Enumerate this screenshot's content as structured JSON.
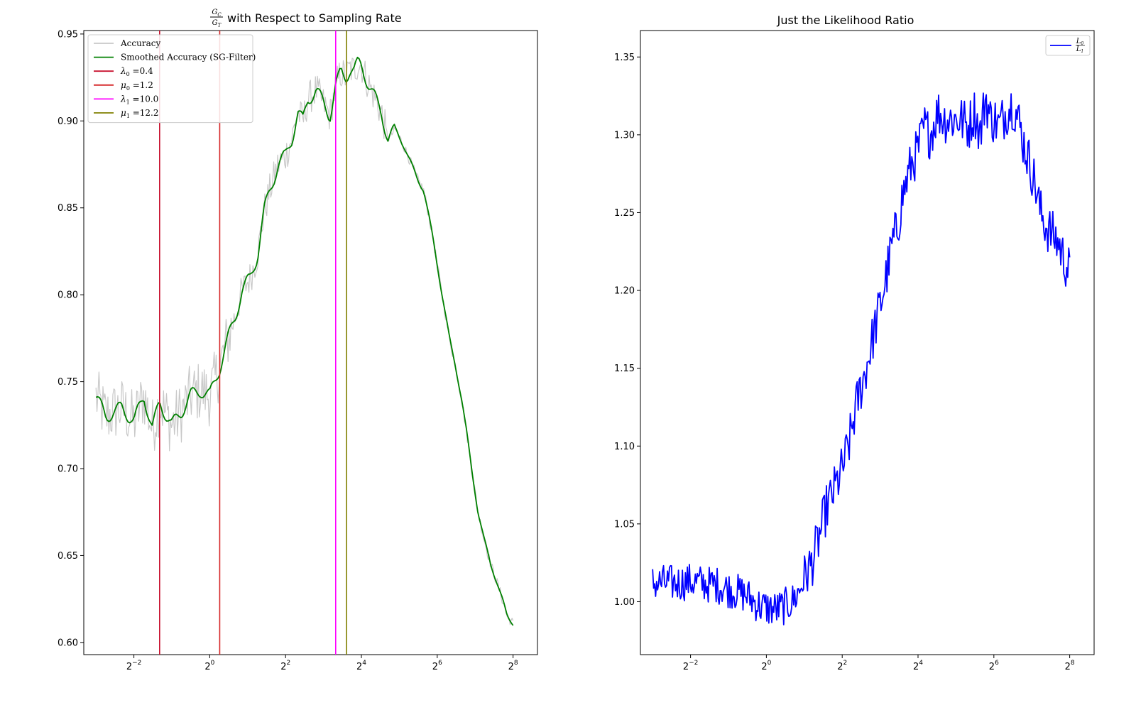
{
  "chart_data": [
    {
      "type": "line",
      "title": "with Respect to Sampling Rate",
      "title_fraction": {
        "numerator": "G",
        "numerator_sub": "C",
        "denominator": "G",
        "denominator_sub": "T"
      },
      "xlabel": "",
      "ylabel": "",
      "xscale": "log2",
      "xlim": [
        0.1,
        400
      ],
      "ylim": [
        0.593,
        0.952
      ],
      "xticks": [
        {
          "value": 0.25,
          "base": "2",
          "exp": "−2"
        },
        {
          "value": 1,
          "base": "2",
          "exp": "0"
        },
        {
          "value": 4,
          "base": "2",
          "exp": "2"
        },
        {
          "value": 16,
          "base": "2",
          "exp": "4"
        },
        {
          "value": 64,
          "base": "2",
          "exp": "6"
        },
        {
          "value": 256,
          "base": "2",
          "exp": "8"
        }
      ],
      "yticks": [
        {
          "value": 0.6,
          "label": "0.60"
        },
        {
          "value": 0.65,
          "label": "0.65"
        },
        {
          "value": 0.7,
          "label": "0.70"
        },
        {
          "value": 0.75,
          "label": "0.75"
        },
        {
          "value": 0.8,
          "label": "0.80"
        },
        {
          "value": 0.85,
          "label": "0.85"
        },
        {
          "value": 0.9,
          "label": "0.90"
        },
        {
          "value": 0.95,
          "label": "0.95"
        }
      ],
      "grid": false,
      "legend_position": "top-left",
      "series": [
        {
          "name": "Accuracy",
          "color": "#c8c8c8",
          "noisy": true,
          "x": [
            0.125,
            0.15,
            0.2,
            0.25,
            0.3,
            0.35,
            0.4,
            0.5,
            0.6,
            0.7,
            0.85,
            1.0,
            1.2,
            1.4,
            1.6,
            1.8,
            2.1,
            2.4,
            2.7,
            3.0,
            3.5,
            4.0,
            4.5,
            5.0,
            5.5,
            6.0,
            7.0,
            8.0,
            9.0,
            10.0,
            11.0,
            12.0,
            13.0,
            14.0,
            15.0,
            16.0,
            18.0,
            20.0,
            23.0,
            26.0,
            30.0,
            35.0,
            40.0,
            45.0,
            50.0,
            55.0,
            60.0,
            70.0,
            80.0,
            90.0,
            100.0,
            110.0,
            120.0,
            135.0,
            150.0,
            170.0,
            190.0,
            210.0,
            230.0,
            256.0
          ],
          "y": [
            0.741,
            0.73,
            0.735,
            0.727,
            0.742,
            0.723,
            0.738,
            0.725,
            0.733,
            0.742,
            0.745,
            0.742,
            0.758,
            0.775,
            0.788,
            0.802,
            0.81,
            0.823,
            0.848,
            0.86,
            0.875,
            0.88,
            0.89,
            0.905,
            0.9,
            0.912,
            0.918,
            0.91,
            0.903,
            0.92,
            0.928,
            0.925,
            0.93,
            0.929,
            0.933,
            0.932,
            0.922,
            0.915,
            0.905,
            0.89,
            0.895,
            0.885,
            0.875,
            0.866,
            0.86,
            0.845,
            0.83,
            0.8,
            0.775,
            0.758,
            0.74,
            0.72,
            0.7,
            0.675,
            0.66,
            0.645,
            0.635,
            0.625,
            0.615,
            0.611
          ]
        },
        {
          "name": "Smoothed Accuracy (SG-Filter)",
          "color": "#008000",
          "noisy": false,
          "x": [
            0.125,
            0.15,
            0.2,
            0.25,
            0.3,
            0.35,
            0.4,
            0.5,
            0.6,
            0.7,
            0.85,
            1.0,
            1.2,
            1.4,
            1.6,
            1.8,
            2.1,
            2.4,
            2.7,
            3.0,
            3.5,
            4.0,
            4.5,
            5.0,
            5.5,
            6.0,
            7.0,
            8.0,
            9.0,
            10.0,
            11.0,
            12.0,
            13.0,
            14.0,
            15.0,
            16.0,
            18.0,
            20.0,
            23.0,
            26.0,
            30.0,
            35.0,
            40.0,
            45.0,
            50.0,
            55.0,
            60.0,
            70.0,
            80.0,
            90.0,
            100.0,
            110.0,
            120.0,
            135.0,
            150.0,
            170.0,
            190.0,
            210.0,
            230.0,
            256.0
          ],
          "y": [
            0.741,
            0.73,
            0.735,
            0.727,
            0.742,
            0.723,
            0.738,
            0.725,
            0.733,
            0.742,
            0.745,
            0.742,
            0.758,
            0.775,
            0.788,
            0.802,
            0.81,
            0.823,
            0.848,
            0.86,
            0.875,
            0.88,
            0.89,
            0.905,
            0.9,
            0.912,
            0.918,
            0.91,
            0.903,
            0.92,
            0.928,
            0.925,
            0.93,
            0.929,
            0.933,
            0.932,
            0.922,
            0.915,
            0.905,
            0.89,
            0.895,
            0.885,
            0.875,
            0.866,
            0.86,
            0.845,
            0.83,
            0.8,
            0.775,
            0.758,
            0.74,
            0.72,
            0.7,
            0.675,
            0.66,
            0.645,
            0.635,
            0.625,
            0.615,
            0.611
          ]
        }
      ],
      "vlines": [
        {
          "x": 0.4,
          "color": "#c8102e",
          "sym": "λ",
          "sub": "0",
          "value": "0.4"
        },
        {
          "x": 1.2,
          "color": "#d62728",
          "sym": "μ",
          "sub": "0",
          "value": "1.2"
        },
        {
          "x": 10.0,
          "color": "#ff00ff",
          "sym": "λ",
          "sub": "1",
          "value": "10.0"
        },
        {
          "x": 12.2,
          "color": "#808000",
          "sym": "μ",
          "sub": "1",
          "value": "12.2"
        }
      ]
    },
    {
      "type": "line",
      "title": "Just the Likelihood Ratio",
      "xlabel": "",
      "ylabel": "",
      "xscale": "log2",
      "xlim": [
        0.1,
        400
      ],
      "ylim": [
        0.966,
        1.367
      ],
      "xticks": [
        {
          "value": 0.25,
          "base": "2",
          "exp": "−2"
        },
        {
          "value": 1,
          "base": "2",
          "exp": "0"
        },
        {
          "value": 4,
          "base": "2",
          "exp": "2"
        },
        {
          "value": 16,
          "base": "2",
          "exp": "4"
        },
        {
          "value": 64,
          "base": "2",
          "exp": "6"
        },
        {
          "value": 256,
          "base": "2",
          "exp": "8"
        }
      ],
      "yticks": [
        {
          "value": 1.0,
          "label": "1.00"
        },
        {
          "value": 1.05,
          "label": "1.05"
        },
        {
          "value": 1.1,
          "label": "1.10"
        },
        {
          "value": 1.15,
          "label": "1.15"
        },
        {
          "value": 1.2,
          "label": "1.20"
        },
        {
          "value": 1.25,
          "label": "1.25"
        },
        {
          "value": 1.3,
          "label": "1.30"
        },
        {
          "value": 1.35,
          "label": "1.35"
        }
      ],
      "grid": false,
      "legend_position": "top-right",
      "legend_fraction": {
        "numerator": "L",
        "numerator_sub": "0",
        "denominator": "L",
        "denominator_sub": "1"
      },
      "series": [
        {
          "color": "#0000ff",
          "noisy": true,
          "x": [
            0.125,
            0.15,
            0.2,
            0.25,
            0.3,
            0.35,
            0.4,
            0.5,
            0.6,
            0.7,
            0.8,
            0.9,
            1.0,
            1.2,
            1.4,
            1.6,
            1.8,
            2.0,
            2.3,
            2.6,
            3.0,
            3.4,
            4.0,
            4.5,
            5.0,
            5.5,
            6.0,
            7.0,
            8.0,
            9.0,
            10.0,
            11.0,
            12.0,
            13.0,
            14.0,
            16.0,
            18.0,
            20.0,
            23.0,
            26.0,
            30.0,
            35.0,
            40.0,
            45.0,
            50.0,
            55.0,
            60.0,
            65.0,
            70.0,
            80.0,
            90.0,
            100.0,
            110.0,
            120.0,
            135.0,
            150.0,
            170.0,
            190.0,
            210.0,
            230.0,
            256.0
          ],
          "y": [
            1.012,
            1.012,
            1.012,
            1.013,
            1.012,
            1.011,
            1.011,
            1.008,
            1.006,
            1.004,
            1.0,
            0.997,
            0.996,
            0.995,
            0.997,
            1.0,
            1.006,
            1.015,
            1.025,
            1.04,
            1.06,
            1.07,
            1.085,
            1.1,
            1.12,
            1.135,
            1.145,
            1.17,
            1.19,
            1.21,
            1.23,
            1.24,
            1.26,
            1.27,
            1.28,
            1.29,
            1.305,
            1.3,
            1.315,
            1.31,
            1.31,
            1.31,
            1.305,
            1.315,
            1.3,
            1.325,
            1.31,
            1.31,
            1.305,
            1.315,
            1.32,
            1.31,
            1.295,
            1.285,
            1.27,
            1.25,
            1.24,
            1.235,
            1.23,
            1.22,
            1.212
          ]
        }
      ]
    }
  ]
}
